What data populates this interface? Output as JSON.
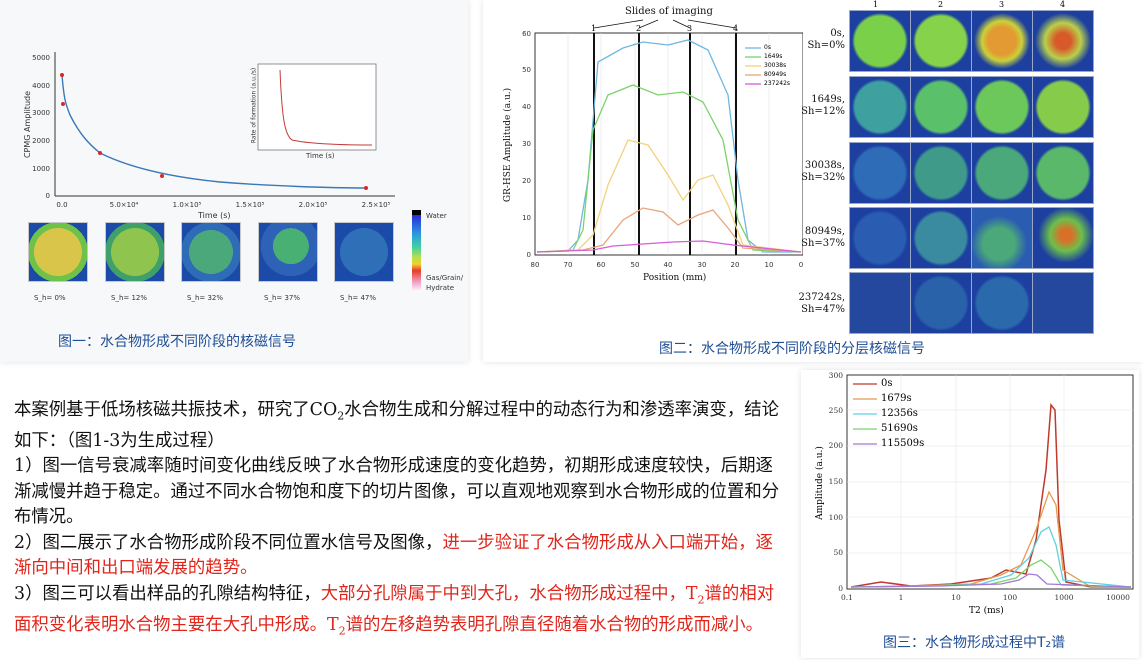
{
  "figure1": {
    "caption": "图一：水合物形成不同阶段的核磁信号",
    "ylabel": "CPMG Amplitude",
    "xlabel": "Time (s)",
    "inset_ylabel": "Rate of formation (a.u./s)",
    "inset_xlabel": "Time (s)",
    "colorbar_labels": [
      "Water",
      "Gas/Grain/",
      "Hydrate"
    ],
    "slice_labels": [
      "S_h= 0%",
      "S_h= 12%",
      "S_h= 32%",
      "S_h= 37%",
      "S_h= 47%"
    ],
    "yticks": [
      "0",
      "1000",
      "2000",
      "3000",
      "4000",
      "5000"
    ],
    "xticks": [
      "0.0",
      "5.0×10⁴",
      "1.0×10⁵",
      "1.5×10⁵",
      "2.0×10⁵",
      "2.5×10⁵"
    ]
  },
  "figure2": {
    "caption": "图二：水合物形成不同阶段的分层核磁信号",
    "title": "Slides of imaging",
    "ylabel": "GR-HSE Amplitude (a.u.)",
    "xlabel": "Position (mm)",
    "slide_numbers": [
      "1",
      "2",
      "3",
      "4"
    ],
    "legend": [
      "0s",
      "1649s",
      "30038s",
      "80949s",
      "237242s"
    ],
    "legend_colors": [
      "#6fb7e0",
      "#7ad36a",
      "#f2d27a",
      "#e9a47a",
      "#d85cd6"
    ],
    "xticks": [
      "80",
      "70",
      "60",
      "50",
      "40",
      "30",
      "20",
      "10",
      "0"
    ],
    "yticks": [
      "0",
      "10",
      "20",
      "30",
      "40",
      "50",
      "60"
    ],
    "column_numbers": [
      "1",
      "2",
      "3",
      "4"
    ],
    "row_labels": [
      {
        "time": "0s,",
        "sh": "Sh=0%"
      },
      {
        "time": "1649s,",
        "sh": "Sh=12%"
      },
      {
        "time": "30038s,",
        "sh": "Sh=32%"
      },
      {
        "time": "80949s,",
        "sh": "Sh=37%"
      },
      {
        "time": "237242s,",
        "sh": "Sh=47%"
      }
    ]
  },
  "figure3": {
    "caption": "图三：水合物形成过程中T₂谱",
    "ylabel": "Amplitude (a.u.)",
    "xlabel": "T2 (ms)",
    "legend": [
      "0s",
      "1679s",
      "12356s",
      "51690s",
      "115509s"
    ],
    "legend_colors": [
      "#c0392b",
      "#e39a4f",
      "#5fd0e0",
      "#7bd36b",
      "#a07ad6"
    ],
    "yticks": [
      "0",
      "50",
      "100",
      "150",
      "200",
      "250",
      "300"
    ],
    "xticks": [
      "0.1",
      "1",
      "10",
      "100",
      "1000",
      "10000"
    ]
  },
  "text": {
    "p1a": "本案例基于低场核磁共振技术，研究了CO",
    "p1sub": "2",
    "p1b": "水合物生成和分解过程中的动态行为和渗透率演变，结论如下：（图1-3为生成过程）",
    "p2": "1）图一信号衰减率随时间变化曲线反映了水合物形成速度的变化趋势，初期形成速度较快，后期逐渐减慢并趋于稳定。通过不同水合物饱和度下的切片图像，可以直观地观察到水合物形成的位置和分布情况。",
    "p3a": "2）图二展示了水合物形成阶段不同位置水信号及图像，",
    "p3red": "进一步验证了水合物形成从入口端开始，逐渐向中间和出口端发展的趋势。",
    "p4a": "3）图三可以看出样品的孔隙结构特征，",
    "p4red1": "大部分孔隙属于中到大孔，水合物形成过程中，T",
    "p4sub1": "2",
    "p4red2": "谱的相对面积变化表明水合物主要在大孔中形成。T",
    "p4sub2": "2",
    "p4red3": "谱的左移趋势表明孔隙直径随着水合物的形成而减小。"
  }
}
